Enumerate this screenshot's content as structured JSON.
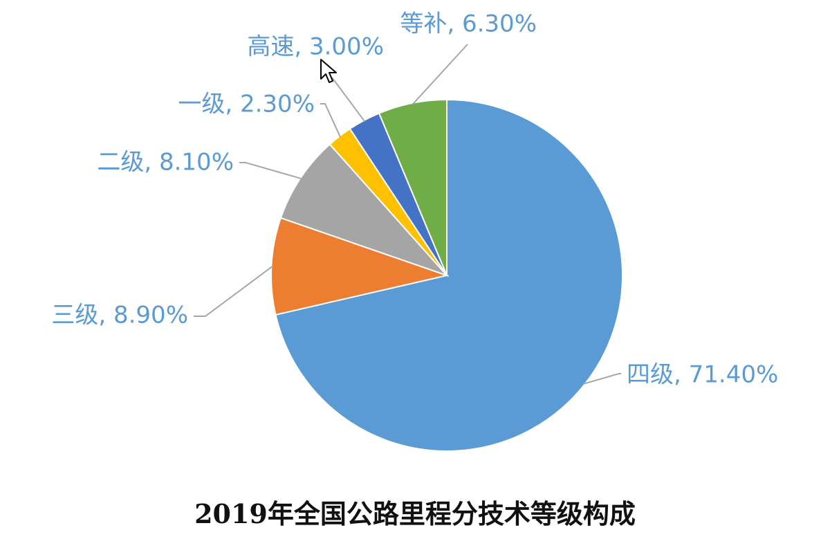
{
  "chart_data": {
    "type": "pie",
    "title": "2019年全国公路里程分技术等级构成",
    "slices": [
      {
        "label": "四级",
        "value": 71.4,
        "display": "四级, 71.40%",
        "color": "#5b9bd5"
      },
      {
        "label": "三级",
        "value": 8.9,
        "display": "三级, 8.90%",
        "color": "#ed7d31"
      },
      {
        "label": "二级",
        "value": 8.1,
        "display": "二级, 8.10%",
        "color": "#a5a5a5"
      },
      {
        "label": "一级",
        "value": 2.3,
        "display": "一级, 2.30%",
        "color": "#ffc000"
      },
      {
        "label": "高速",
        "value": 3.0,
        "display": "高速, 3.00%",
        "color": "#4472c4"
      },
      {
        "label": "等补",
        "value": 6.3,
        "display": "等补, 6.30%",
        "color": "#70ad47"
      }
    ],
    "start": "12 o'clock",
    "direction": "clockwise",
    "legend": "none",
    "label_color": "#5b9bd5",
    "leader_line_color": "#a6a6a6"
  },
  "icons": {
    "cursor": "mouse-pointer-icon"
  }
}
